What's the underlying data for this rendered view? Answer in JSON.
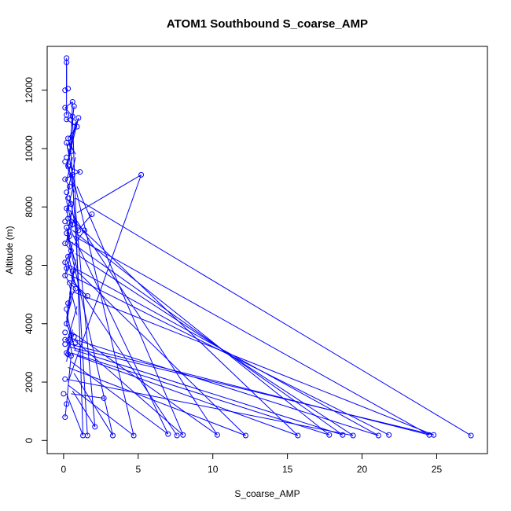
{
  "chart_data": {
    "type": "line",
    "title": "ATOM1 Southbound S_coarse_AMP",
    "xlabel": "S_coarse_AMP",
    "ylabel": "Altitude (m)",
    "xlim": [
      -1.1,
      28.4
    ],
    "ylim": [
      -450,
      13500
    ],
    "xticks": [
      0,
      5,
      10,
      15,
      20,
      25
    ],
    "yticks": [
      0,
      2000,
      4000,
      6000,
      8000,
      10000,
      12000
    ],
    "grid": false,
    "legend": "none",
    "series_color": "#0000ff",
    "series": [
      {
        "values": [
          [
            0.2,
            13100
          ],
          [
            0.2,
            12950
          ],
          [
            0.3,
            12050
          ],
          [
            0.1,
            12000
          ],
          [
            0.6,
            11600
          ],
          [
            0.7,
            11450
          ],
          [
            0.1,
            11400
          ],
          [
            0.2,
            11150
          ],
          [
            0.6,
            11100
          ],
          [
            1.0,
            11050
          ],
          [
            0.2,
            11000
          ],
          [
            0.7,
            10900
          ],
          [
            0.9,
            10750
          ],
          [
            0.3,
            10350
          ],
          [
            0.2,
            10200
          ],
          [
            0.4,
            10050
          ],
          [
            0.5,
            9900
          ],
          [
            0.2,
            9700
          ],
          [
            0.1,
            9550
          ],
          [
            0.3,
            9400
          ],
          [
            1.1,
            9200
          ],
          [
            0.6,
            9100
          ],
          [
            5.2,
            9100
          ],
          [
            0.1,
            8950
          ],
          [
            0.4,
            8700
          ],
          [
            0.2,
            8500
          ],
          [
            0.3,
            8300
          ],
          [
            0.5,
            8100
          ],
          [
            0.2,
            7950
          ],
          [
            1.9,
            7750
          ],
          [
            0.3,
            7600
          ],
          [
            0.1,
            7500
          ],
          [
            0.6,
            7400
          ],
          [
            0.2,
            7300
          ],
          [
            1.4,
            7200
          ],
          [
            1.0,
            7200
          ],
          [
            0.2,
            7100
          ],
          [
            0.4,
            7000
          ],
          [
            0.1,
            6750
          ],
          [
            0.5,
            6500
          ],
          [
            0.3,
            6300
          ],
          [
            0.1,
            6100
          ],
          [
            0.2,
            5900
          ],
          [
            0.6,
            5800
          ],
          [
            0.1,
            5650
          ],
          [
            0.4,
            5400
          ],
          [
            0.8,
            5200
          ],
          [
            1.6,
            4950
          ],
          [
            0.3,
            4700
          ],
          [
            0.2,
            4500
          ],
          [
            0.2,
            4000
          ],
          [
            0.1,
            3700
          ],
          [
            0.5,
            3600
          ],
          [
            0.7,
            3550
          ],
          [
            0.1,
            3450
          ],
          [
            0.4,
            3400
          ],
          [
            0.8,
            3350
          ],
          [
            0.1,
            3300
          ],
          [
            0.2,
            3000
          ],
          [
            0.3,
            2950
          ],
          [
            0.5,
            2900
          ],
          [
            0.1,
            2100
          ],
          [
            0.2,
            1250
          ],
          [
            0.1,
            800
          ],
          [
            0.0,
            1600
          ],
          [
            2.7,
            1450
          ],
          [
            2.1,
            470
          ],
          [
            1.3,
            170
          ],
          [
            1.6,
            170
          ],
          [
            3.3,
            170
          ],
          [
            4.7,
            170
          ],
          [
            7.0,
            220
          ],
          [
            7.6,
            170
          ],
          [
            8.0,
            190
          ],
          [
            10.3,
            190
          ],
          [
            12.2,
            170
          ],
          [
            15.7,
            170
          ],
          [
            17.8,
            190
          ],
          [
            18.7,
            190
          ],
          [
            19.4,
            170
          ],
          [
            21.1,
            170
          ],
          [
            21.8,
            190
          ],
          [
            24.5,
            190
          ],
          [
            24.8,
            190
          ],
          [
            27.3,
            170
          ]
        ]
      }
    ],
    "connections": [
      [
        0.2,
        13100,
        0.2,
        11150
      ],
      [
        0.6,
        11600,
        0.1,
        11400
      ],
      [
        0.1,
        11400,
        0.6,
        11100
      ],
      [
        0.6,
        11100,
        0.2,
        11000
      ],
      [
        0.2,
        11000,
        0.9,
        10750
      ],
      [
        0.9,
        10750,
        0.3,
        10350
      ],
      [
        0.3,
        10350,
        0.5,
        9900
      ],
      [
        0.5,
        9900,
        0.2,
        9400
      ],
      [
        0.2,
        9400,
        1.1,
        9200
      ],
      [
        1.1,
        9200,
        0.6,
        9100
      ],
      [
        0.6,
        9100,
        0.1,
        8950
      ],
      [
        0.1,
        8950,
        0.4,
        8700
      ],
      [
        0.4,
        8700,
        0.2,
        8300
      ],
      [
        0.2,
        8300,
        0.5,
        8100
      ],
      [
        0.5,
        8100,
        0.2,
        7950
      ],
      [
        0.2,
        7950,
        0.3,
        7600
      ],
      [
        0.3,
        7600,
        0.6,
        7400
      ],
      [
        0.6,
        7400,
        0.2,
        7100
      ],
      [
        0.2,
        7100,
        0.4,
        7000
      ],
      [
        0.4,
        7000,
        0.1,
        6750
      ],
      [
        0.1,
        6750,
        0.5,
        6500
      ],
      [
        0.5,
        6500,
        0.3,
        6300
      ],
      [
        0.3,
        6300,
        0.1,
        6100
      ],
      [
        0.1,
        6100,
        0.2,
        5900
      ],
      [
        0.2,
        5900,
        0.1,
        5650
      ],
      [
        0.1,
        5650,
        0.4,
        5400
      ],
      [
        0.4,
        5400,
        0.8,
        5200
      ],
      [
        0.8,
        5200,
        0.3,
        4700
      ],
      [
        0.3,
        4700,
        0.2,
        4000
      ],
      [
        0.2,
        4000,
        0.5,
        3600
      ],
      [
        0.5,
        3600,
        0.1,
        3450
      ],
      [
        0.1,
        3450,
        0.4,
        3400
      ],
      [
        0.4,
        3400,
        0.2,
        3000
      ],
      [
        0.2,
        3000,
        0.5,
        2900
      ],
      [
        0.5,
        2900,
        0.2,
        1250
      ],
      [
        0.8,
        10900,
        0.3,
        9500
      ],
      [
        0.4,
        10200,
        0.8,
        9800
      ],
      [
        0.6,
        9700,
        0.2,
        8900
      ],
      [
        0.3,
        9300,
        0.7,
        8500
      ],
      [
        0.7,
        8800,
        0.2,
        7800
      ],
      [
        0.4,
        8400,
        0.8,
        7300
      ],
      [
        0.5,
        7800,
        0.2,
        6800
      ],
      [
        0.2,
        7300,
        0.7,
        6200
      ],
      [
        0.6,
        6800,
        0.2,
        5700
      ],
      [
        0.3,
        6400,
        0.8,
        5300
      ],
      [
        0.7,
        5800,
        0.3,
        4600
      ],
      [
        0.5,
        5100,
        0.2,
        3900
      ],
      [
        0.2,
        4400,
        0.7,
        3200
      ],
      [
        0.6,
        3800,
        0.2,
        2700
      ],
      [
        1.0,
        11050,
        0.4,
        9800
      ],
      [
        0.6,
        10500,
        0.2,
        9300
      ],
      [
        0.2,
        9550,
        0.8,
        8600
      ],
      [
        0.7,
        8300,
        0.3,
        7100
      ],
      [
        0.3,
        7000,
        0.9,
        5900
      ],
      [
        0.8,
        6200,
        0.4,
        5000
      ],
      [
        0.4,
        5300,
        0.9,
        4300
      ],
      [
        0.9,
        4600,
        0.3,
        3500
      ],
      [
        0.3,
        3900,
        0.8,
        3100
      ],
      [
        0.2,
        12950,
        0.2,
        11900
      ],
      [
        0.6,
        11600,
        0.5,
        10300
      ],
      [
        0.7,
        11450,
        0.4,
        10100
      ],
      [
        1.0,
        11050,
        0.6,
        10400
      ],
      [
        0.2,
        10200,
        0.6,
        9100
      ],
      [
        0.8,
        9700,
        0.3,
        8600
      ],
      [
        0.2,
        8200,
        0.6,
        7300
      ],
      [
        0.7,
        7600,
        0.3,
        6800
      ],
      [
        0.3,
        6100,
        0.7,
        5400
      ],
      [
        0.6,
        4900,
        0.2,
        4200
      ],
      [
        0.4,
        3700,
        0.3,
        3100
      ],
      [
        5.2,
        9100,
        0.9,
        7800
      ],
      [
        5.2,
        9100,
        0.3,
        2000
      ],
      [
        1.9,
        7750,
        0.8,
        7100
      ],
      [
        1.4,
        7200,
        0.7,
        6700
      ],
      [
        1.6,
        4950,
        0.6,
        5400
      ],
      [
        0.4,
        3400,
        0.6,
        2900
      ],
      [
        0.6,
        11100,
        1.3,
        170
      ],
      [
        0.5,
        9800,
        1.6,
        170
      ],
      [
        0.8,
        7900,
        2.1,
        470
      ],
      [
        0.3,
        6900,
        3.3,
        170
      ],
      [
        0.6,
        9100,
        4.7,
        170
      ],
      [
        0.2,
        7500,
        7.0,
        220
      ],
      [
        0.5,
        5600,
        7.6,
        170
      ],
      [
        0.9,
        8700,
        8.0,
        190
      ],
      [
        0.4,
        7900,
        10.3,
        190
      ],
      [
        0.7,
        5900,
        12.2,
        170
      ],
      [
        0.3,
        7700,
        15.7,
        170
      ],
      [
        0.6,
        7200,
        17.8,
        190
      ],
      [
        0.2,
        6900,
        18.7,
        190
      ],
      [
        0.8,
        6400,
        19.4,
        170
      ],
      [
        0.4,
        6000,
        21.1,
        170
      ],
      [
        0.3,
        5700,
        21.8,
        190
      ],
      [
        0.7,
        7000,
        24.5,
        190
      ],
      [
        0.6,
        5100,
        24.8,
        190
      ],
      [
        0.8,
        8300,
        27.3,
        170
      ],
      [
        0.5,
        3500,
        21.1,
        170
      ],
      [
        0.4,
        3300,
        24.5,
        190
      ],
      [
        0.7,
        3100,
        18.7,
        190
      ],
      [
        0.5,
        3000,
        17.8,
        190
      ],
      [
        0.9,
        2900,
        15.7,
        170
      ],
      [
        0.3,
        2500,
        12.2,
        170
      ],
      [
        0.6,
        3700,
        10.3,
        190
      ],
      [
        0.4,
        3200,
        24.8,
        190
      ],
      [
        0.2,
        2100,
        19.4,
        170
      ],
      [
        0.8,
        3400,
        8.0,
        190
      ],
      [
        0.5,
        2700,
        7.0,
        220
      ],
      [
        0.3,
        1900,
        4.7,
        170
      ],
      [
        0.7,
        2300,
        3.3,
        170
      ],
      [
        0.6,
        1700,
        2.1,
        470
      ],
      [
        0.5,
        1600,
        2.7,
        1450
      ],
      [
        0.2,
        1600,
        1.3,
        170
      ],
      [
        0.1,
        800,
        0.2,
        1250
      ]
    ]
  }
}
